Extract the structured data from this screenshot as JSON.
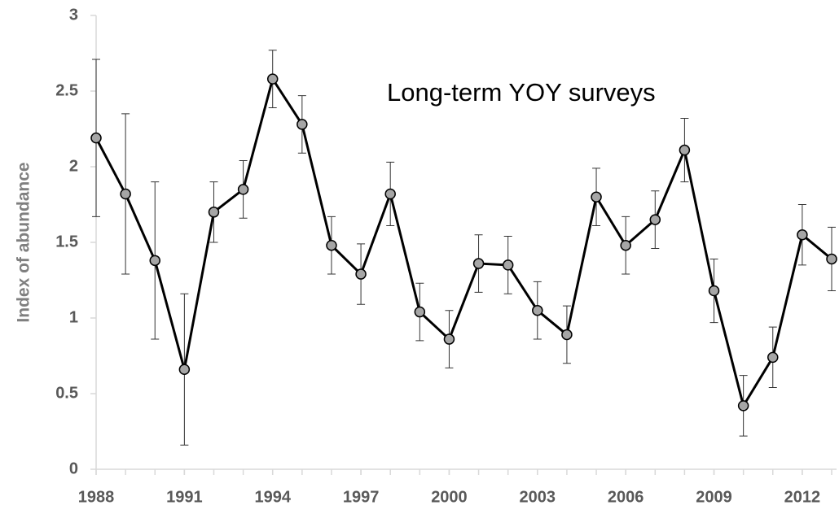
{
  "chart_data": {
    "type": "line",
    "y_label": "Index of abundance",
    "annotation": "Long-term YOY surveys",
    "x": [
      1988,
      1989,
      1990,
      1991,
      1992,
      1993,
      1994,
      1995,
      1996,
      1997,
      1998,
      1999,
      2000,
      2001,
      2002,
      2003,
      2004,
      2005,
      2006,
      2007,
      2008,
      2009,
      2010,
      2011,
      2012,
      2013
    ],
    "values": [
      2.19,
      1.82,
      1.38,
      0.66,
      1.7,
      1.85,
      2.58,
      2.28,
      1.48,
      1.29,
      1.82,
      1.04,
      0.86,
      1.36,
      1.35,
      1.05,
      0.89,
      1.8,
      1.48,
      1.65,
      2.11,
      1.18,
      0.42,
      0.74,
      1.55,
      1.39
    ],
    "errors": [
      0.52,
      0.53,
      0.52,
      0.5,
      0.2,
      0.19,
      0.19,
      0.19,
      0.19,
      0.2,
      0.21,
      0.19,
      0.19,
      0.19,
      0.19,
      0.19,
      0.19,
      0.19,
      0.19,
      0.19,
      0.21,
      0.21,
      0.2,
      0.2,
      0.2,
      0.21
    ],
    "color": "#000000",
    "marker_color": "#a6a6a6",
    "xlim": [
      1988,
      2013
    ],
    "xticks": [
      1988,
      1991,
      1994,
      1997,
      2000,
      2003,
      2006,
      2009,
      2012
    ],
    "ylim": [
      0,
      3
    ],
    "yticks": [
      0,
      0.5,
      1,
      1.5,
      2,
      2.5,
      3
    ]
  }
}
